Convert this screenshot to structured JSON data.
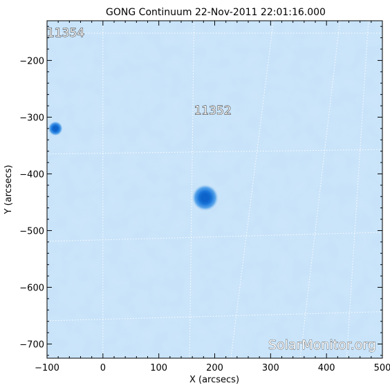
{
  "chart_data": {
    "type": "heatmap",
    "title": "GONG Continuum 22-Nov-2011 22:01:16.000",
    "xlabel": "X (arcsecs)",
    "ylabel": "Y (arcsecs)",
    "xlim": [
      -100,
      500
    ],
    "ylim": [
      -725,
      -130
    ],
    "x_ticks": [
      -100,
      0,
      100,
      200,
      300,
      400,
      500
    ],
    "y_ticks": [
      -200,
      -300,
      -400,
      -500,
      -600,
      -700
    ],
    "x_tick_labels": [
      "−100",
      "0",
      "100",
      "200",
      "300",
      "400",
      "500"
    ],
    "y_tick_labels": [
      "−200",
      "−300",
      "−400",
      "−500",
      "−600",
      "−700"
    ],
    "grid": "dotted heliographic grid",
    "background_color": "#c8e3f9",
    "spot_color": "#0d63c9",
    "regions": [
      {
        "label": "11354",
        "x": -100,
        "y": -158
      },
      {
        "label": "11352",
        "x": 163,
        "y": -295
      }
    ],
    "sunspots": [
      {
        "x": 183,
        "y": -442,
        "radius": 11
      },
      {
        "x": -85,
        "y": -320,
        "radius": 6
      }
    ],
    "grid_lines": {
      "latitude": [
        [
          [
            -100,
            -152
          ],
          [
            500,
            -152
          ]
        ],
        [
          [
            -100,
            -365
          ],
          [
            500,
            -357
          ]
        ],
        [
          [
            -100,
            -519
          ],
          [
            500,
            -503
          ]
        ],
        [
          [
            -100,
            -659
          ],
          [
            500,
            -643
          ]
        ]
      ],
      "longitude": [
        [
          [
            0,
            -125
          ],
          [
            0,
            -725
          ]
        ],
        [
          [
            163,
            -130
          ],
          [
            155,
            -725
          ]
        ],
        [
          [
            305,
            -130
          ],
          [
            229,
            -725
          ]
        ],
        [
          [
            424,
            -130
          ],
          [
            353,
            -725
          ]
        ],
        [
          [
            475,
            -130
          ],
          [
            436,
            -725
          ]
        ]
      ]
    }
  },
  "watermark": "SolarMonitor.org"
}
